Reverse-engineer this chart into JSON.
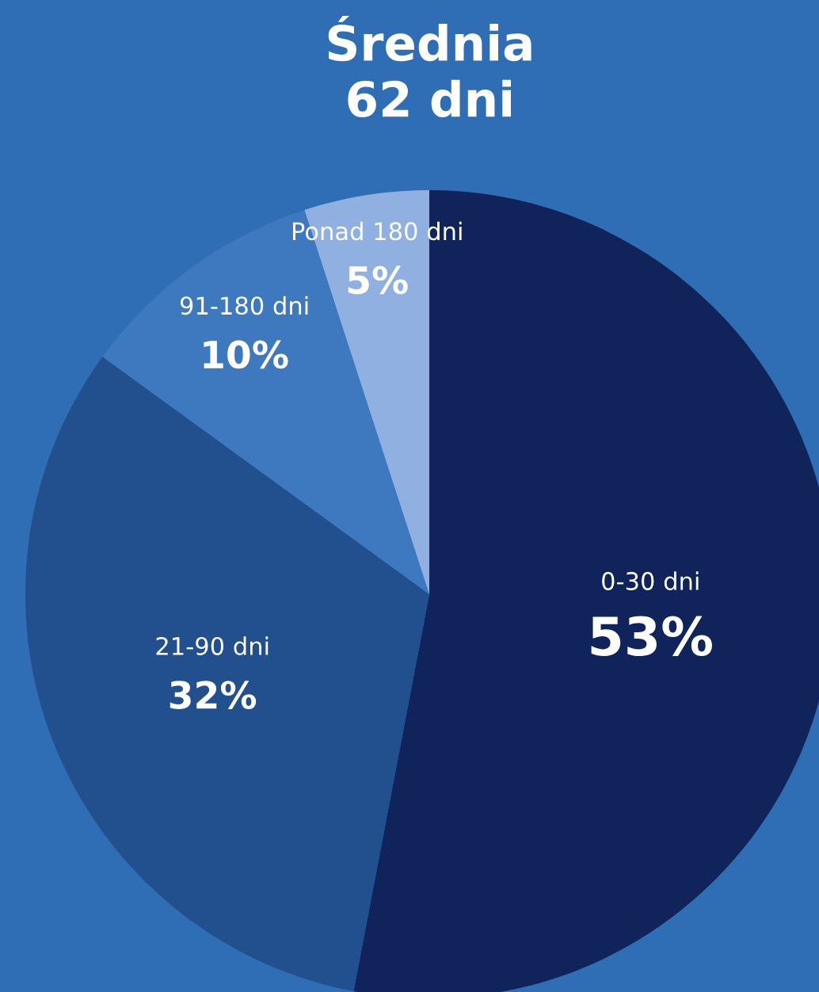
{
  "chart_data": {
    "type": "pie",
    "title": "Średnia\n62 dni",
    "categories": [
      "0-30 dni",
      "21-90 dni",
      "91-180 dni",
      "Ponad 180 dni"
    ],
    "values": [
      53,
      32,
      10,
      5
    ],
    "value_labels": [
      "53%",
      "32%",
      "10%",
      "5%"
    ],
    "colors": [
      "#10235a",
      "#22508f",
      "#3e78bf",
      "#8fb0e0"
    ]
  }
}
